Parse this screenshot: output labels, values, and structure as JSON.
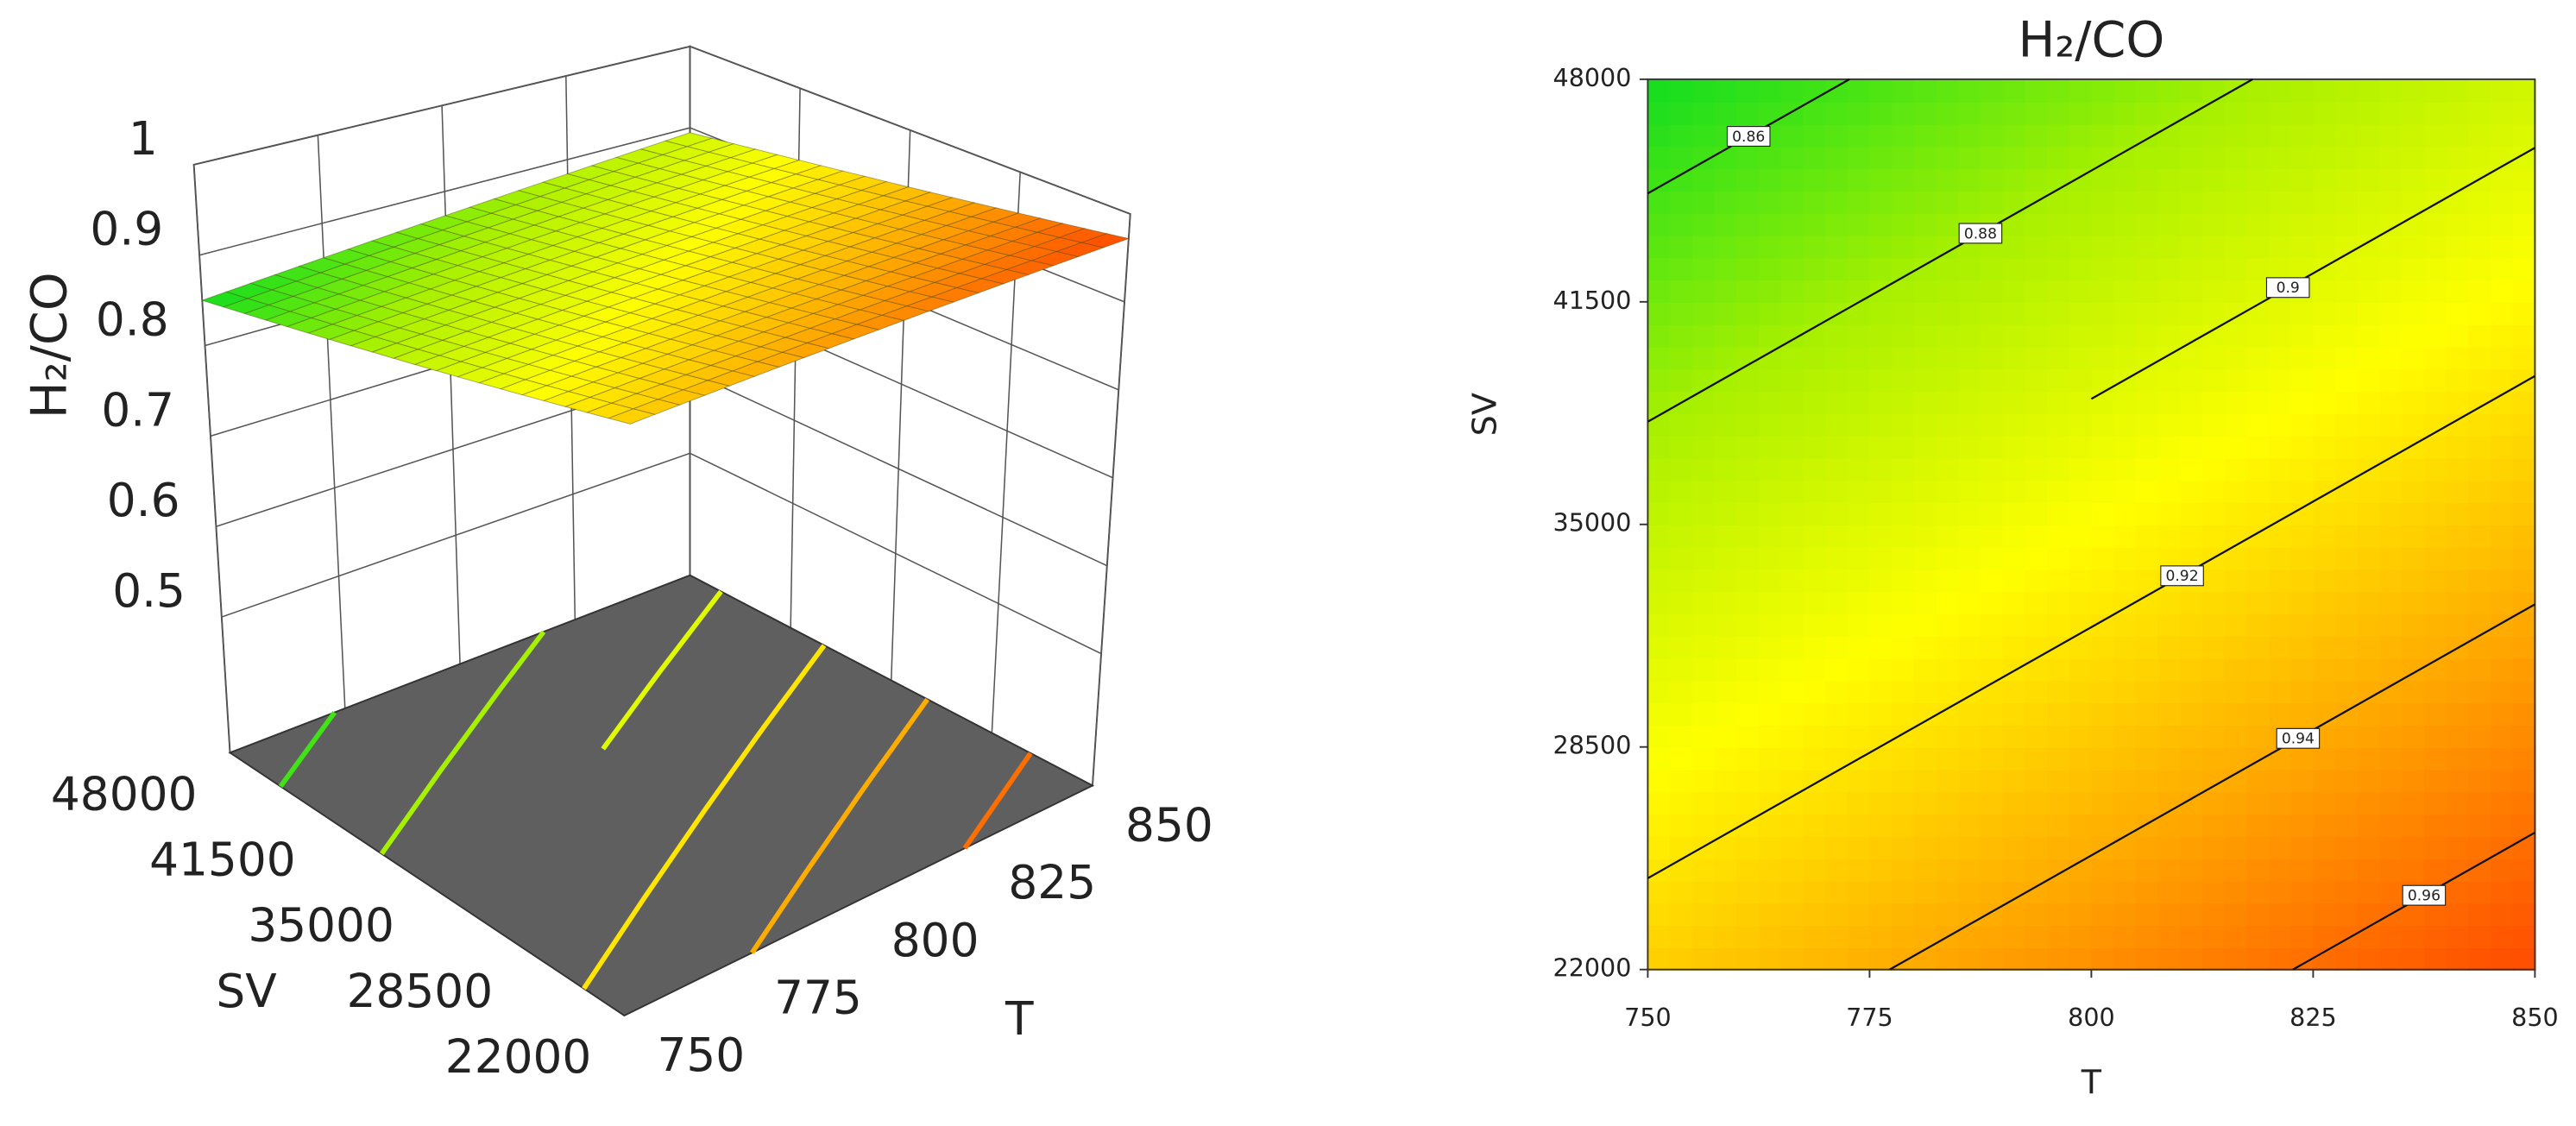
{
  "chart_data": [
    {
      "type": "surface",
      "zlabel": "H₂/CO",
      "xlabel": "T",
      "ylabel": "SV",
      "x": [
        750,
        775,
        800,
        825,
        850
      ],
      "y": [
        22000,
        28500,
        35000,
        41500,
        48000
      ],
      "z": [
        [
          0.928,
          0.939,
          0.95,
          0.961,
          0.972
        ],
        [
          0.9085,
          0.9195,
          0.9305,
          0.9415,
          0.9525
        ],
        [
          0.889,
          0.9,
          0.911,
          0.922,
          0.933
        ],
        [
          0.8695,
          0.8805,
          0.8915,
          0.9025,
          0.9135
        ],
        [
          0.85,
          0.861,
          0.872,
          0.883,
          0.894
        ]
      ],
      "xlim": [
        750,
        850
      ],
      "ylim": [
        22000,
        48000
      ],
      "zlim": [
        0.35,
        1
      ],
      "xticks": [
        750,
        775,
        800,
        825,
        850
      ],
      "yticks": [
        22000,
        28500,
        35000,
        41500,
        48000
      ],
      "zticks": [
        0.5,
        0.6,
        0.7,
        0.8,
        0.9,
        1
      ],
      "levels": [
        0.86,
        0.88,
        0.9,
        0.92,
        0.94,
        0.96
      ],
      "colormap": [
        "#10dd20",
        "#a8f000",
        "#ffff00",
        "#ffa800",
        "#ff4a00"
      ],
      "floor_color": "#5f5f5f"
    },
    {
      "type": "contour",
      "title": "H₂/CO",
      "xlabel": "T",
      "ylabel": "SV",
      "x": [
        750,
        775,
        800,
        825,
        850
      ],
      "y": [
        22000,
        28500,
        35000,
        41500,
        48000
      ],
      "z": [
        [
          0.928,
          0.939,
          0.95,
          0.961,
          0.972
        ],
        [
          0.9085,
          0.9195,
          0.9305,
          0.9415,
          0.9525
        ],
        [
          0.889,
          0.9,
          0.911,
          0.922,
          0.933
        ],
        [
          0.8695,
          0.8805,
          0.8915,
          0.9025,
          0.9135
        ],
        [
          0.85,
          0.861,
          0.872,
          0.883,
          0.894
        ]
      ],
      "xlim": [
        750,
        850
      ],
      "ylim": [
        22000,
        48000
      ],
      "xticks": [
        750,
        775,
        800,
        825,
        850
      ],
      "yticks": [
        22000,
        28500,
        35000,
        41500,
        48000
      ],
      "levels": [
        0.86,
        0.88,
        0.9,
        0.92,
        0.94,
        0.96
      ],
      "colormap": [
        "#10dd20",
        "#a8f000",
        "#ffff00",
        "#ffa800",
        "#ff4a00"
      ]
    }
  ]
}
